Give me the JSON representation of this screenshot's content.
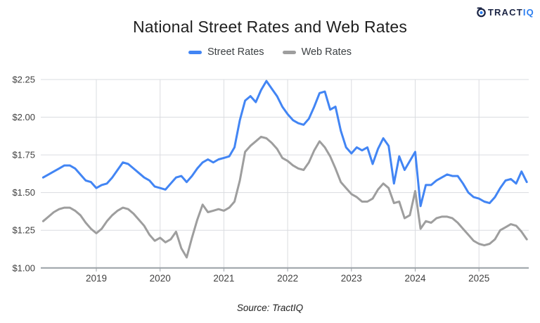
{
  "header": {
    "logo": {
      "primary": "TRACT",
      "secondary": "IQ",
      "navy": "#1b2444",
      "blue": "#2d7ff0"
    }
  },
  "footer": {
    "source": "Source: TractIQ"
  },
  "chart_data": {
    "type": "line",
    "title": "National Street Rates and Web Rates",
    "xlabel": "",
    "ylabel": "",
    "ylim": [
      1.0,
      2.25
    ],
    "grid": true,
    "legend_position": "top",
    "frequency": "monthly",
    "start_month": "2018-03",
    "end_month": "2025-10",
    "x_tick_labels": [
      "2019",
      "2020",
      "2021",
      "2022",
      "2023",
      "2024",
      "2025"
    ],
    "y_ticks": [
      1.0,
      1.25,
      1.5,
      1.75,
      2.0,
      2.25
    ],
    "y_tick_labels": [
      "$1.00",
      "$1.25",
      "$1.50",
      "$1.75",
      "$2.00",
      "$2.25"
    ],
    "series": [
      {
        "name": "Street Rates",
        "color": "#4285f4",
        "values": [
          1.6,
          1.62,
          1.64,
          1.66,
          1.68,
          1.68,
          1.66,
          1.62,
          1.58,
          1.57,
          1.53,
          1.55,
          1.56,
          1.6,
          1.65,
          1.7,
          1.69,
          1.66,
          1.63,
          1.6,
          1.58,
          1.54,
          1.53,
          1.52,
          1.56,
          1.6,
          1.61,
          1.57,
          1.61,
          1.66,
          1.7,
          1.72,
          1.7,
          1.72,
          1.73,
          1.74,
          1.8,
          1.98,
          2.11,
          2.14,
          2.1,
          2.18,
          2.24,
          2.19,
          2.14,
          2.07,
          2.02,
          1.98,
          1.96,
          1.95,
          1.99,
          2.07,
          2.16,
          2.17,
          2.05,
          2.07,
          1.91,
          1.8,
          1.76,
          1.8,
          1.78,
          1.8,
          1.69,
          1.79,
          1.86,
          1.81,
          1.56,
          1.74,
          1.65,
          1.71,
          1.77,
          1.41,
          1.55,
          1.55,
          1.58,
          1.6,
          1.62,
          1.61,
          1.61,
          1.56,
          1.5,
          1.47,
          1.46,
          1.44,
          1.43,
          1.47,
          1.53,
          1.58,
          1.59,
          1.56,
          1.64,
          1.57
        ]
      },
      {
        "name": "Web Rates",
        "color": "#9e9e9e",
        "values": [
          1.31,
          1.34,
          1.37,
          1.39,
          1.4,
          1.4,
          1.38,
          1.35,
          1.3,
          1.26,
          1.23,
          1.26,
          1.31,
          1.35,
          1.38,
          1.4,
          1.39,
          1.36,
          1.32,
          1.28,
          1.22,
          1.18,
          1.2,
          1.17,
          1.19,
          1.24,
          1.13,
          1.07,
          1.2,
          1.32,
          1.42,
          1.37,
          1.38,
          1.39,
          1.38,
          1.4,
          1.44,
          1.58,
          1.77,
          1.81,
          1.84,
          1.87,
          1.86,
          1.83,
          1.79,
          1.73,
          1.71,
          1.68,
          1.66,
          1.65,
          1.7,
          1.78,
          1.84,
          1.8,
          1.74,
          1.66,
          1.57,
          1.53,
          1.49,
          1.47,
          1.44,
          1.44,
          1.46,
          1.52,
          1.56,
          1.53,
          1.43,
          1.44,
          1.33,
          1.35,
          1.51,
          1.26,
          1.31,
          1.3,
          1.33,
          1.34,
          1.34,
          1.33,
          1.3,
          1.26,
          1.22,
          1.18,
          1.16,
          1.15,
          1.16,
          1.19,
          1.25,
          1.27,
          1.29,
          1.28,
          1.24,
          1.19
        ]
      }
    ],
    "style": {
      "gridline_color": "#dadce0",
      "axis_line_color": "#9aa0a6",
      "label_color": "#404040",
      "line_width": 3
    }
  }
}
